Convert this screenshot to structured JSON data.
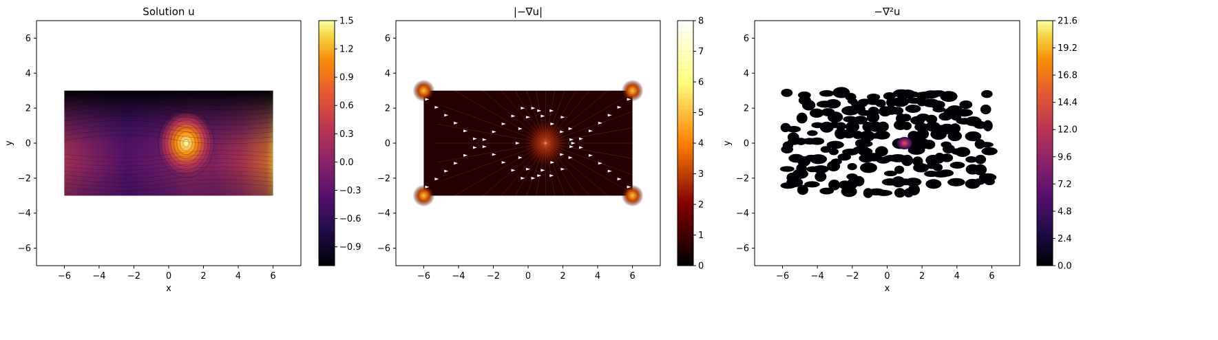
{
  "chart_data": [
    {
      "type": "heatmap",
      "title": "Solution u",
      "xlabel": "x",
      "ylabel": "y",
      "xlim": [
        -7.6,
        7.6
      ],
      "ylim": [
        -7.0,
        7.0
      ],
      "xticks": [
        "−6",
        "−4",
        "−2",
        "0",
        "2",
        "4",
        "6"
      ],
      "yticks": [
        "−6",
        "−4",
        "−2",
        "0",
        "2",
        "4",
        "6"
      ],
      "domain": {
        "x": [
          -6,
          6
        ],
        "y": [
          -3,
          3
        ]
      },
      "colormap": "inferno",
      "colorbar": {
        "min": -1.1,
        "max": 1.5,
        "ticks": [
          "−0.9",
          "−0.6",
          "−0.3",
          "0.0",
          "0.3",
          "0.6",
          "0.9",
          "1.2",
          "1.5"
        ]
      },
      "features": {
        "source_peak": {
          "x": 1,
          "y": 0
        },
        "min_edge": "top",
        "max_edge": "right"
      }
    },
    {
      "type": "heatmap",
      "title": "|−∇u|",
      "xlabel": "",
      "ylabel": "",
      "xlim": [
        -7.6,
        7.6
      ],
      "ylim": [
        -7.0,
        7.0
      ],
      "xticks": [
        "−6",
        "−4",
        "−2",
        "0",
        "2",
        "4",
        "6"
      ],
      "yticks": [
        "−6",
        "−4",
        "−2",
        "0",
        "2",
        "4",
        "6"
      ],
      "domain": {
        "x": [
          -6,
          6
        ],
        "y": [
          -3,
          3
        ]
      },
      "colormap": "afmhot",
      "colorbar": {
        "min": 0,
        "max": 8,
        "ticks": [
          "0",
          "1",
          "2",
          "3",
          "4",
          "5",
          "6",
          "7",
          "8"
        ]
      },
      "overlay": "quiver arrows (white) showing −∇u direction"
    },
    {
      "type": "heatmap",
      "title": "−∇²u",
      "xlabel": "x",
      "ylabel": "y",
      "xlim": [
        -7.6,
        7.6
      ],
      "ylim": [
        -7.0,
        7.0
      ],
      "xticks": [
        "−6",
        "−4",
        "−2",
        "0",
        "2",
        "4",
        "6"
      ],
      "yticks": [
        "−6",
        "−4",
        "−2",
        "0",
        "2",
        "4",
        "6"
      ],
      "domain": {
        "x": [
          -6,
          6
        ],
        "y": [
          -3,
          3
        ]
      },
      "colormap": "inferno",
      "colorbar": {
        "min": 0.0,
        "max": 21.6,
        "ticks": [
          "0.0",
          "2.4",
          "4.8",
          "7.2",
          "9.6",
          "12.0",
          "14.4",
          "16.8",
          "19.2",
          "21.6"
        ]
      },
      "features": {
        "source_peak": {
          "x": 1,
          "y": 0
        },
        "pattern": "speckled black/white noise"
      }
    }
  ]
}
